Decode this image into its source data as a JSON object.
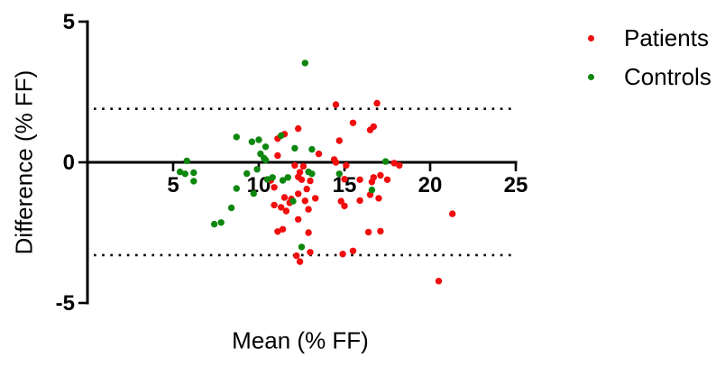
{
  "figure": {
    "x_axis_title": "Mean (% FF)",
    "y_axis_title": "Difference (% FF)"
  },
  "chart_data": {
    "type": "scatter",
    "title": "",
    "xlabel": "Mean (% FF)",
    "ylabel": "Difference (% FF)",
    "xlim": [
      0,
      25
    ],
    "ylim": [
      -5,
      5
    ],
    "x_ticks": [
      5,
      10,
      15,
      20,
      25
    ],
    "y_ticks": [
      5,
      0,
      -5
    ],
    "grid": false,
    "legend_position": "top-right",
    "axis_color": "#000000",
    "reference_lines": {
      "bias": 0,
      "upper_loa": 1.9,
      "lower_loa": -3.3,
      "loa_style": "dotted"
    },
    "series": [
      {
        "name": "Patients",
        "color": "#f10d0d",
        "marker": "circle",
        "points": [
          [
            11.5,
            1.0
          ],
          [
            11.1,
            0.84
          ],
          [
            12.3,
            1.2
          ],
          [
            13.5,
            0.3
          ],
          [
            14.7,
            0.77
          ],
          [
            14.5,
            2.05
          ],
          [
            16.9,
            2.1
          ],
          [
            15.5,
            1.4
          ],
          [
            16.5,
            1.15
          ],
          [
            16.7,
            1.27
          ],
          [
            11.1,
            0.24
          ],
          [
            14.4,
            0.1
          ],
          [
            14.5,
            0.0
          ],
          [
            15.1,
            -0.11
          ],
          [
            17.9,
            -0.03
          ],
          [
            18.2,
            -0.11
          ],
          [
            12.1,
            -0.11
          ],
          [
            12.6,
            -0.14
          ],
          [
            12.4,
            -0.35
          ],
          [
            12.3,
            -0.52
          ],
          [
            12.5,
            -0.62
          ],
          [
            13.0,
            -0.66
          ],
          [
            10.7,
            -0.64
          ],
          [
            10.9,
            -0.89
          ],
          [
            10.9,
            -1.52
          ],
          [
            11.3,
            -1.6
          ],
          [
            11.5,
            -1.25
          ],
          [
            11.9,
            -1.3
          ],
          [
            11.8,
            -1.44
          ],
          [
            12.3,
            -1.12
          ],
          [
            12.7,
            -1.37
          ],
          [
            13.3,
            -1.28
          ],
          [
            12.8,
            -0.95
          ],
          [
            12.9,
            -1.67
          ],
          [
            11.6,
            -1.73
          ],
          [
            15.0,
            -0.6
          ],
          [
            15.9,
            -0.62
          ],
          [
            16.6,
            -0.7
          ],
          [
            16.7,
            -0.54
          ],
          [
            17.1,
            -0.46
          ],
          [
            17.5,
            -0.62
          ],
          [
            16.5,
            -1.15
          ],
          [
            17.0,
            -1.28
          ],
          [
            15.9,
            -1.36
          ],
          [
            14.8,
            -1.38
          ],
          [
            15.0,
            -1.55
          ],
          [
            11.1,
            -2.46
          ],
          [
            11.4,
            -2.38
          ],
          [
            12.3,
            -2.03
          ],
          [
            12.9,
            -2.5
          ],
          [
            16.4,
            -2.48
          ],
          [
            17.1,
            -2.45
          ],
          [
            21.3,
            -1.83
          ],
          [
            12.2,
            -3.32
          ],
          [
            13.0,
            -3.2
          ],
          [
            12.4,
            -3.53
          ],
          [
            14.9,
            -3.26
          ],
          [
            15.5,
            -3.15
          ],
          [
            20.5,
            -4.22
          ]
        ]
      },
      {
        "name": "Controls",
        "color": "#0e870e",
        "marker": "circle",
        "points": [
          [
            5.4,
            -0.34
          ],
          [
            5.7,
            -0.41
          ],
          [
            5.8,
            0.05
          ],
          [
            6.2,
            -0.37
          ],
          [
            6.2,
            -0.67
          ],
          [
            7.4,
            -2.2
          ],
          [
            7.8,
            -2.14
          ],
          [
            8.4,
            -1.62
          ],
          [
            8.7,
            0.9
          ],
          [
            8.7,
            -0.93
          ],
          [
            9.3,
            -0.4
          ],
          [
            9.7,
            -1.11
          ],
          [
            9.6,
            0.73
          ],
          [
            10.0,
            0.8
          ],
          [
            9.9,
            -0.25
          ],
          [
            10.1,
            0.3
          ],
          [
            10.3,
            0.15
          ],
          [
            10.4,
            0.08
          ],
          [
            10.4,
            0.55
          ],
          [
            10.5,
            -0.61
          ],
          [
            10.8,
            -0.54
          ],
          [
            11.3,
            0.95
          ],
          [
            11.4,
            -0.64
          ],
          [
            11.7,
            -0.54
          ],
          [
            12.1,
            0.5
          ],
          [
            12.0,
            -1.38
          ],
          [
            12.5,
            -3.01
          ],
          [
            12.7,
            3.53
          ],
          [
            12.9,
            -0.34
          ],
          [
            13.1,
            -0.41
          ],
          [
            13.1,
            0.46
          ],
          [
            14.7,
            -0.41
          ],
          [
            16.6,
            -0.98
          ],
          [
            17.4,
            0.03
          ]
        ]
      }
    ]
  }
}
